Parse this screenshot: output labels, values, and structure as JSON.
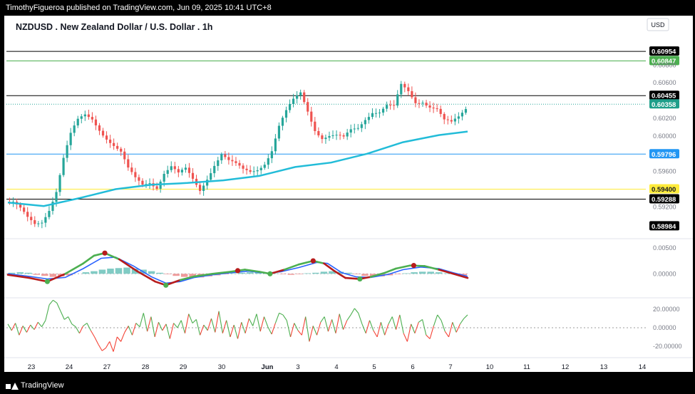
{
  "header": {
    "publisher_line": "TimothyFigueroa published on TradingView.com, Jun 09, 2025 10:41 UTC+8"
  },
  "footer": {
    "brand": "TradingView"
  },
  "chart_data": {
    "type": "candlestick",
    "title": "NZDUSD . New Zealand Dollar / U.S. Dollar . 1h",
    "currency": "USD",
    "colors": {
      "up": "#26a69a",
      "down": "#ef5350",
      "ma": "#22bcd8",
      "horizontal_default": "#000000"
    },
    "x_labels": [
      "23",
      "24",
      "27",
      "28",
      "29",
      "30",
      "Jun",
      "3",
      "4",
      "5",
      "6",
      "7",
      "10",
      "11",
      "12",
      "13",
      "14"
    ],
    "price_panel": {
      "y_ticks": [
        "0.60800",
        "0.60600",
        "0.60200",
        "0.60000",
        "0.59600",
        "0.59200"
      ],
      "ylim": [
        0.5885,
        0.6118
      ],
      "horizontal_lines": [
        {
          "value": 0.60954,
          "label": "0.60954",
          "color": "#000000",
          "label_bg": "#000000"
        },
        {
          "value": 0.60847,
          "label": "0.60847",
          "color": "#4caf50",
          "label_bg": "#4caf50"
        },
        {
          "value": 0.60455,
          "label": "0.60455",
          "color": "#000000",
          "label_bg": "#000000"
        },
        {
          "value": 0.60358,
          "label": "0.60358",
          "color": "#26a69a",
          "label_bg": "#1e9e8a",
          "dotted": true
        },
        {
          "value": 0.59796,
          "label": "0.59796",
          "color": "#2196f3",
          "label_bg": "#2196f3"
        },
        {
          "value": 0.594,
          "label": "0.59400",
          "color": "#ffeb3b",
          "label_bg": "#ffeb3b"
        },
        {
          "value": 0.59288,
          "label": "0.59288",
          "color": "#000000",
          "label_bg": "#000000"
        },
        {
          "value": 0.58984,
          "label": "0.58984",
          "color": "#000000",
          "label_bg": "#000000",
          "no_line": true
        }
      ],
      "close_path": [
        [
          0,
          0.5925
        ],
        [
          2,
          0.5924
        ],
        [
          4,
          0.5915
        ],
        [
          6,
          0.5905
        ],
        [
          8,
          0.59
        ],
        [
          10,
          0.5905
        ],
        [
          12,
          0.592
        ],
        [
          14,
          0.594
        ],
        [
          16,
          0.5975
        ],
        [
          18,
          0.6
        ],
        [
          20,
          0.6015
        ],
        [
          22,
          0.6022
        ],
        [
          24,
          0.602
        ],
        [
          26,
          0.601
        ],
        [
          28,
          0.6
        ],
        [
          30,
          0.599
        ],
        [
          32,
          0.598
        ],
        [
          34,
          0.596
        ],
        [
          36,
          0.595
        ],
        [
          38,
          0.5945
        ],
        [
          40,
          0.595
        ],
        [
          42,
          0.5945
        ],
        [
          44,
          0.596
        ],
        [
          46,
          0.5965
        ],
        [
          48,
          0.5955
        ],
        [
          50,
          0.596
        ],
        [
          52,
          0.595
        ],
        [
          54,
          0.594
        ],
        [
          56,
          0.5955
        ],
        [
          58,
          0.597
        ],
        [
          60,
          0.598
        ],
        [
          62,
          0.597
        ],
        [
          64,
          0.5965
        ],
        [
          66,
          0.596
        ],
        [
          68,
          0.596
        ],
        [
          70,
          0.5965
        ],
        [
          72,
          0.5972
        ],
        [
          74,
          0.5985
        ],
        [
          76,
          0.601
        ],
        [
          78,
          0.6025
        ],
        [
          80,
          0.6038
        ],
        [
          82,
          0.6048
        ],
        [
          84,
          0.603
        ],
        [
          86,
          0.601
        ],
        [
          88,
          0.6
        ],
        [
          90,
          0.6
        ],
        [
          92,
          0.5998
        ],
        [
          94,
          0.5995
        ],
        [
          96,
          0.6005
        ],
        [
          98,
          0.601
        ],
        [
          100,
          0.6022
        ],
        [
          102,
          0.603
        ],
        [
          104,
          0.6028
        ],
        [
          106,
          0.6033
        ],
        [
          108,
          0.603
        ],
        [
          110,
          0.6055
        ],
        [
          112,
          0.605
        ],
        [
          114,
          0.604
        ],
        [
          116,
          0.6042
        ],
        [
          118,
          0.6035
        ],
        [
          120,
          0.603
        ],
        [
          122,
          0.6015
        ],
        [
          124,
          0.6012
        ],
        [
          126,
          0.602
        ],
        [
          128,
          0.6032
        ]
      ],
      "ma_path": [
        [
          0,
          0.5925
        ],
        [
          10,
          0.5921
        ],
        [
          20,
          0.593
        ],
        [
          30,
          0.594
        ],
        [
          40,
          0.5945
        ],
        [
          50,
          0.5947
        ],
        [
          60,
          0.595
        ],
        [
          70,
          0.5955
        ],
        [
          80,
          0.5965
        ],
        [
          90,
          0.597
        ],
        [
          100,
          0.598
        ],
        [
          110,
          0.5993
        ],
        [
          120,
          0.6001
        ],
        [
          128,
          0.6005
        ]
      ]
    },
    "macd_panel": {
      "y_ticks": [
        "0.00500",
        "0.00000"
      ],
      "ylim": [
        -0.0045,
        0.0065
      ],
      "macd_line": [
        [
          0,
          -0.0002
        ],
        [
          6,
          -0.0008
        ],
        [
          11,
          -0.0015
        ],
        [
          16,
          0.0
        ],
        [
          21,
          0.002
        ],
        [
          24,
          0.0035
        ],
        [
          27,
          0.004
        ],
        [
          31,
          0.0028
        ],
        [
          36,
          0.0005
        ],
        [
          41,
          -0.0015
        ],
        [
          44,
          -0.0022
        ],
        [
          48,
          -0.0012
        ],
        [
          52,
          -0.0005
        ],
        [
          57,
          0.0
        ],
        [
          62,
          0.0004
        ],
        [
          66,
          0.0008
        ],
        [
          70,
          0.0004
        ],
        [
          73,
          0.0
        ],
        [
          77,
          0.0008
        ],
        [
          81,
          0.0018
        ],
        [
          85,
          0.0025
        ],
        [
          88,
          0.002
        ],
        [
          91,
          0.0005
        ],
        [
          94,
          -0.0008
        ],
        [
          98,
          -0.001
        ],
        [
          101,
          -0.0006
        ],
        [
          105,
          0.0002
        ],
        [
          108,
          0.001
        ],
        [
          112,
          0.0016
        ],
        [
          116,
          0.0015
        ],
        [
          120,
          0.0008
        ],
        [
          124,
          0.0
        ],
        [
          128,
          -0.0008
        ]
      ],
      "signal_line": [
        [
          0,
          0.0
        ],
        [
          6,
          -0.0005
        ],
        [
          11,
          -0.001
        ],
        [
          16,
          -0.0007
        ],
        [
          21,
          0.001
        ],
        [
          26,
          0.003
        ],
        [
          30,
          0.0032
        ],
        [
          35,
          0.0015
        ],
        [
          40,
          -0.0006
        ],
        [
          44,
          -0.0018
        ],
        [
          48,
          -0.0015
        ],
        [
          52,
          -0.0007
        ],
        [
          57,
          -0.0002
        ],
        [
          62,
          0.0002
        ],
        [
          67,
          0.0005
        ],
        [
          72,
          0.0001
        ],
        [
          76,
          0.0004
        ],
        [
          81,
          0.0012
        ],
        [
          86,
          0.0022
        ],
        [
          89,
          0.002
        ],
        [
          93,
          0.0002
        ],
        [
          97,
          -0.0006
        ],
        [
          101,
          -0.0007
        ],
        [
          106,
          -0.0001
        ],
        [
          110,
          0.0008
        ],
        [
          115,
          0.0013
        ],
        [
          120,
          0.001
        ],
        [
          124,
          0.0002
        ],
        [
          128,
          -0.0005
        ]
      ],
      "histogram": [
        0.0002,
        0.0003,
        0.0002,
        -0.0002,
        -0.0004,
        -0.0006,
        -0.0005,
        -0.0003,
        0.0,
        0.0003,
        0.0005,
        0.0008,
        0.001,
        0.0011,
        0.0012,
        0.001,
        0.0008,
        0.0005,
        0.0002,
        -0.0001,
        -0.0004,
        -0.0006,
        -0.0007,
        -0.0007,
        -0.0005,
        -0.0003,
        -0.0001,
        0.0001,
        0.0002,
        0.0003,
        0.0003,
        0.0002,
        0.0001,
        -0.0001,
        -0.0002,
        -0.0001,
        0.0001,
        0.0002,
        0.0004,
        0.0005,
        0.0004,
        0.0002,
        -0.0001,
        -0.0004,
        -0.0006,
        -0.0005,
        -0.0003,
        -0.0001,
        0.0001,
        0.0003,
        0.0004,
        0.0004,
        0.0003,
        0.0001,
        -0.0001,
        -0.0003
      ],
      "signal_markers": [
        {
          "x": 11,
          "value": -0.0015,
          "color": "#4caf50"
        },
        {
          "x": 27,
          "value": 0.004,
          "color": "#b71c1c"
        },
        {
          "x": 44,
          "value": -0.0022,
          "color": "#4caf50"
        },
        {
          "x": 64,
          "value": 0.0006,
          "color": "#b71c1c"
        },
        {
          "x": 73,
          "value": 0.0,
          "color": "#4caf50"
        },
        {
          "x": 85,
          "value": 0.0025,
          "color": "#b71c1c"
        },
        {
          "x": 98,
          "value": -0.001,
          "color": "#4caf50"
        },
        {
          "x": 113,
          "value": 0.0016,
          "color": "#b71c1c"
        }
      ]
    },
    "oscillator_panel": {
      "y_ticks": [
        "20.00000",
        "0.00000",
        "-20.00000"
      ],
      "ylim": [
        -31,
        31
      ],
      "values": [
        4,
        -3,
        5,
        -8,
        2,
        -5,
        3,
        -2,
        6,
        1,
        8,
        25,
        30,
        27,
        18,
        9,
        12,
        4,
        1,
        -6,
        2,
        5,
        -3,
        -10,
        -18,
        -25,
        -22,
        -15,
        -26,
        -10,
        -15,
        -5,
        2,
        -8,
        5,
        1,
        16,
        -4,
        12,
        -10,
        6,
        -3,
        4,
        -12,
        5,
        0,
        8,
        -6,
        15,
        5,
        9,
        -8,
        3,
        -3,
        10,
        -5,
        18,
        -6,
        8,
        -10,
        3,
        -12,
        6,
        -6,
        10,
        2,
        15,
        -4,
        12,
        1,
        -7,
        5,
        16,
        14,
        8,
        -10,
        5,
        -3,
        -8,
        12,
        -15,
        2,
        -8,
        6,
        12,
        -4,
        9,
        -6,
        15,
        -2,
        8,
        14,
        21,
        16,
        4,
        -6,
        8,
        -3,
        -10,
        6,
        -8,
        4,
        12,
        -2,
        14,
        -6,
        -15,
        4,
        -6,
        6,
        9,
        -8,
        -12,
        2,
        14,
        8,
        -4,
        -10,
        6,
        -5,
        4,
        10,
        14
      ]
    }
  }
}
